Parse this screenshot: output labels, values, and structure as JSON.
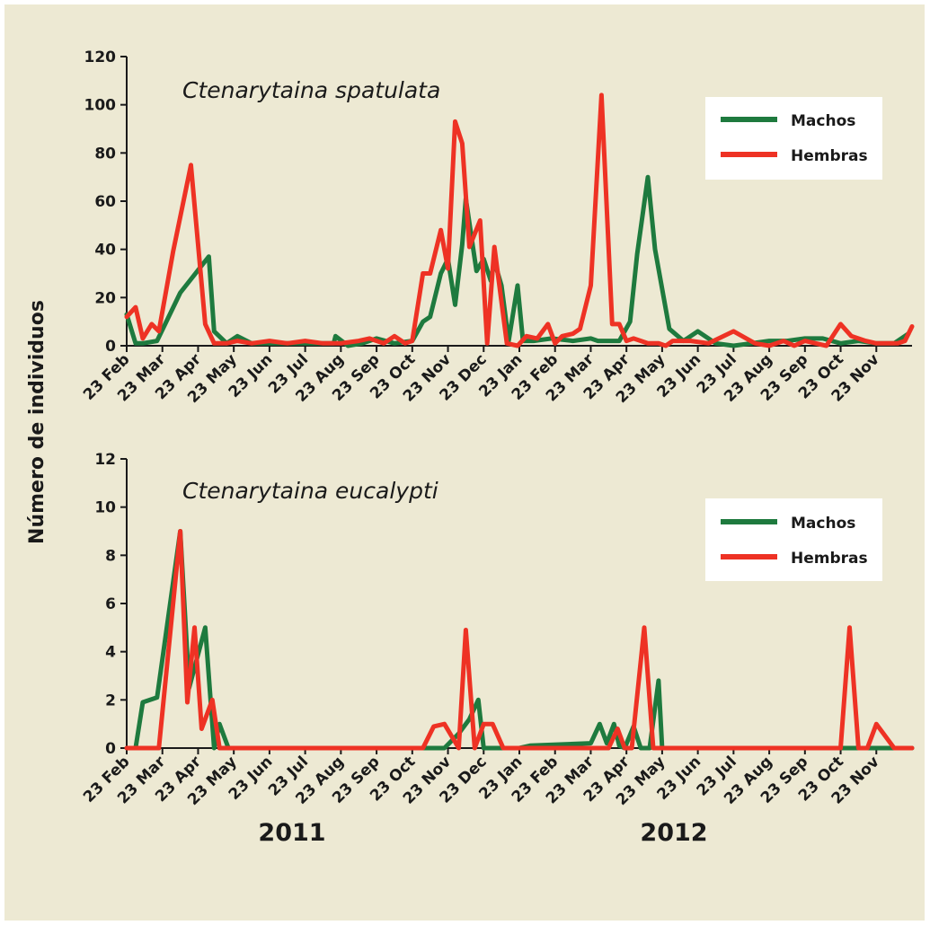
{
  "y_axis_label": "Número de individuos",
  "years": [
    "2011",
    "2012"
  ],
  "legend": [
    "Machos",
    "Hembras"
  ],
  "colors": {
    "machos": "#1e7a3e",
    "hembras": "#ee3224",
    "background": "#ede9d3"
  },
  "chart_data": [
    {
      "type": "line",
      "title": "Ctenarytaina spatulata",
      "ylabel": "Número de individuos",
      "ylim": [
        0,
        120
      ],
      "yticks": [
        0,
        20,
        40,
        60,
        80,
        100,
        120
      ],
      "xticks": [
        "23 Feb",
        "23 Mar",
        "23 Apr",
        "23 May",
        "23 Jun",
        "23 Jul",
        "23 Aug",
        "23 Sep",
        "23 Oct",
        "23 Nov",
        "23 Dec",
        "23 Jan",
        "23 Feb",
        "23 Mar",
        "23 Apr",
        "23 May",
        "23 Jun",
        "23 Jul",
        "23 Aug",
        "23 Sep",
        "23 Oct",
        "23 Nov"
      ],
      "legend_position": "top-right",
      "series": [
        {
          "name": "Machos",
          "x": [
            0,
            0.25,
            0.45,
            0.85,
            1.5,
            2.3,
            2.45,
            2.8,
            3.1,
            3.5,
            4.0,
            4.5,
            5.0,
            5.5,
            5.8,
            5.85,
            6.2,
            6.6,
            7.0,
            7.5,
            8.0,
            8.3,
            8.5,
            8.8,
            9.0,
            9.2,
            9.4,
            9.5,
            9.8,
            10.0,
            10.2,
            10.3,
            10.5,
            10.7,
            10.95,
            11.1,
            11.4,
            11.9,
            12.5,
            13.0,
            13.2,
            13.5,
            13.8,
            14.1,
            14.3,
            14.6,
            14.8,
            15.2,
            15.6,
            16.0,
            16.5,
            17.0,
            17.5,
            18.0,
            18.5,
            19.0,
            19.5,
            20.0,
            20.5,
            21.0,
            21.5,
            21.9
          ],
          "y": [
            13,
            1,
            1,
            2,
            22,
            37,
            6,
            1,
            4,
            1,
            1,
            1,
            1,
            1,
            1,
            4,
            0,
            1,
            3,
            1,
            2,
            10,
            12,
            30,
            36,
            17,
            42,
            61,
            31,
            36,
            27,
            35,
            25,
            2,
            25,
            2,
            2,
            3,
            2,
            3,
            2,
            2,
            2,
            10,
            38,
            70,
            40,
            7,
            2,
            6,
            1,
            0,
            1,
            2,
            2,
            3,
            3,
            1,
            2,
            1,
            1,
            5
          ]
        },
        {
          "name": "Hembras",
          "x": [
            0,
            0.25,
            0.45,
            0.7,
            0.9,
            1.3,
            1.8,
            2.2,
            2.45,
            2.8,
            3.1,
            3.5,
            4.0,
            4.5,
            5.0,
            5.5,
            6.0,
            6.5,
            6.8,
            7.2,
            7.5,
            7.8,
            8.0,
            8.3,
            8.5,
            8.8,
            9.0,
            9.2,
            9.4,
            9.6,
            9.9,
            10.1,
            10.3,
            10.65,
            10.95,
            11.2,
            11.5,
            11.8,
            12.0,
            12.2,
            12.5,
            12.7,
            13.0,
            13.3,
            13.6,
            13.8,
            14.0,
            14.2,
            14.6,
            14.9,
            15.1,
            15.3,
            15.8,
            16.3,
            17.0,
            17.6,
            18.0,
            18.4,
            18.7,
            19.0,
            19.3,
            19.6,
            20.0,
            20.3,
            20.7,
            21.0,
            21.3,
            21.6,
            21.8,
            22.0
          ],
          "y": [
            12,
            16,
            3,
            9,
            6,
            39,
            75,
            9,
            1,
            1,
            2,
            1,
            2,
            1,
            2,
            1,
            1,
            2,
            3,
            1,
            4,
            1,
            2,
            30,
            30,
            48,
            32,
            93,
            84,
            41,
            52,
            1,
            41,
            1,
            0,
            4,
            3,
            9,
            1,
            4,
            5,
            7,
            25,
            104,
            9,
            9,
            2,
            3,
            1,
            1,
            0,
            2,
            2,
            1,
            6,
            1,
            0,
            2,
            0,
            2,
            1,
            0,
            9,
            4,
            2,
            1,
            1,
            1,
            2,
            8
          ]
        }
      ]
    },
    {
      "type": "line",
      "title": "Ctenarytaina eucalypti",
      "ylabel": "Número de individuos",
      "ylim": [
        0,
        12
      ],
      "yticks": [
        0,
        2,
        4,
        6,
        8,
        10,
        12
      ],
      "xticks": [
        "23 Feb",
        "23 Mar",
        "23 Apr",
        "23 May",
        "23 Jun",
        "23 Jul",
        "23 Aug",
        "23 Sep",
        "23 Oct",
        "23 Nov",
        "23 Dec",
        "23 Jan",
        "23 Feb",
        "23 Mar",
        "23 Apr",
        "23 May",
        "23 Jun",
        "23 Jul",
        "23 Aug",
        "23 Sep",
        "23 Oct",
        "23 Nov"
      ],
      "legend_position": "top-right",
      "series": [
        {
          "name": "Machos",
          "x": [
            0,
            0.25,
            0.45,
            0.85,
            1.5,
            1.75,
            2.2,
            2.45,
            2.6,
            2.85,
            3.0,
            8.0,
            8.5,
            8.9,
            9.3,
            9.6,
            9.85,
            10.0,
            10.5,
            11.0,
            11.3,
            13.0,
            13.25,
            13.45,
            13.65,
            13.8,
            13.95,
            14.2,
            14.4,
            14.65,
            14.9,
            15.0,
            16.0,
            17.0,
            18.0,
            19.0,
            19.8,
            20.0,
            21.0,
            22.0
          ],
          "y": [
            0,
            0,
            1.9,
            2.1,
            9,
            2.5,
            5,
            0,
            1,
            0,
            0,
            0,
            0,
            0,
            0.6,
            1.2,
            2,
            0,
            0,
            0,
            0.1,
            0.2,
            1,
            0.2,
            1,
            0.1,
            0,
            0.9,
            0,
            0,
            2.8,
            0,
            0,
            0,
            0,
            0,
            0,
            0,
            0,
            0
          ]
        },
        {
          "name": "Hembras",
          "x": [
            0,
            0.9,
            1.5,
            1.7,
            1.9,
            2.1,
            2.4,
            2.6,
            2.8,
            3.0,
            8.0,
            8.3,
            8.6,
            8.9,
            9.3,
            9.5,
            9.75,
            10.0,
            10.25,
            10.55,
            10.8,
            11.0,
            13.5,
            13.75,
            13.95,
            14.15,
            14.5,
            14.75,
            15.0,
            15.5,
            16.5,
            18.0,
            19.5,
            20.0,
            20.25,
            20.5,
            20.75,
            21.0,
            21.5,
            22.0
          ],
          "y": [
            0,
            0,
            9,
            1.9,
            5,
            0.8,
            2,
            0,
            0,
            0,
            0,
            0,
            0.9,
            1,
            0,
            4.9,
            0,
            1,
            1,
            0,
            0,
            0,
            0,
            0.8,
            0,
            0,
            5,
            0,
            0,
            0,
            0,
            0,
            0,
            0,
            5,
            0,
            0,
            1,
            0,
            0
          ]
        }
      ]
    }
  ]
}
